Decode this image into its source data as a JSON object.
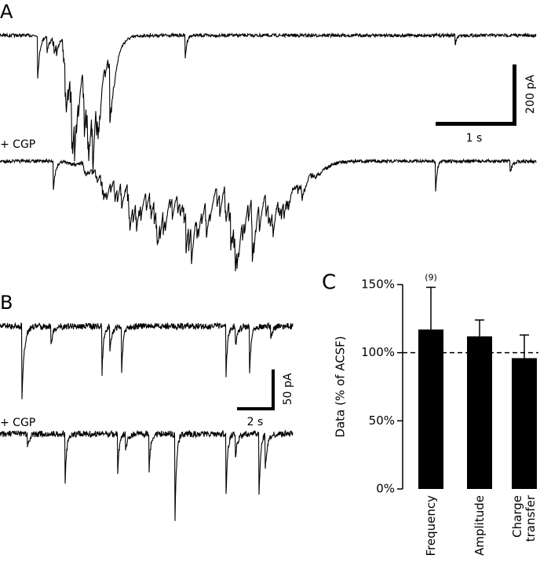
{
  "panels": {
    "a": "A",
    "b": "B",
    "c": "C"
  },
  "traces": {
    "a_condition": "+ CGP",
    "b_condition": "+ CGP",
    "a_scale_y": "200 pA",
    "a_scale_x": "1 s",
    "b_scale_y": "50 pA",
    "b_scale_x": "2 s"
  },
  "chart_data": {
    "type": "bar",
    "ylabel": "Data (% of ACSF)",
    "annotation": "(9)",
    "categories": [
      "Frequency",
      "Amplitude",
      "Charge transfer"
    ],
    "values": [
      117,
      112,
      96
    ],
    "errors": [
      31,
      12,
      17
    ],
    "color": "#000000",
    "reference_line": 100,
    "ylim": [
      0,
      150
    ],
    "yticks": [
      {
        "value": 0,
        "label": "0%"
      },
      {
        "value": 50,
        "label": "50%"
      },
      {
        "value": 100,
        "label": "100%"
      },
      {
        "value": 150,
        "label": "150%"
      }
    ]
  }
}
